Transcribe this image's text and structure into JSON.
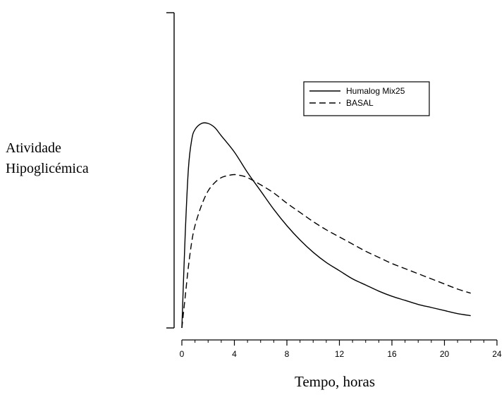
{
  "chart_data": {
    "type": "line",
    "title": "",
    "xlabel": "Tempo, horas",
    "ylabel_lines": [
      "Atividade",
      "Hipoglicémica"
    ],
    "xlim": [
      0,
      24
    ],
    "x_ticks": [
      0,
      4,
      8,
      12,
      16,
      20,
      24
    ],
    "y_ticks_shown": false,
    "grid": false,
    "legend_position": "top-right",
    "series": [
      {
        "name": "Humalog Mix25",
        "style": "solid",
        "color": "#000000",
        "x": [
          0,
          0.25,
          0.5,
          0.75,
          1,
          1.5,
          2,
          2.5,
          3,
          4,
          5,
          6,
          7,
          8,
          9,
          10,
          11,
          12,
          13,
          14,
          15,
          16,
          17,
          18,
          19,
          20,
          21,
          22
        ],
        "y": [
          0,
          0.45,
          0.78,
          0.92,
          0.97,
          1.0,
          1.0,
          0.98,
          0.94,
          0.86,
          0.76,
          0.67,
          0.58,
          0.5,
          0.43,
          0.37,
          0.32,
          0.28,
          0.24,
          0.21,
          0.18,
          0.155,
          0.135,
          0.115,
          0.1,
          0.085,
          0.07,
          0.06
        ]
      },
      {
        "name": "BASAL",
        "style": "dashed",
        "color": "#000000",
        "x": [
          0,
          0.25,
          0.5,
          0.75,
          1,
          1.5,
          2,
          2.5,
          3,
          3.5,
          4,
          4.5,
          5,
          6,
          7,
          8,
          9,
          10,
          11,
          12,
          13,
          14,
          15,
          16,
          17,
          18,
          19,
          20,
          21,
          22
        ],
        "y": [
          0,
          0.15,
          0.3,
          0.42,
          0.5,
          0.6,
          0.67,
          0.71,
          0.735,
          0.745,
          0.75,
          0.745,
          0.735,
          0.7,
          0.66,
          0.61,
          0.565,
          0.52,
          0.48,
          0.445,
          0.41,
          0.375,
          0.345,
          0.315,
          0.29,
          0.265,
          0.24,
          0.215,
          0.19,
          0.17
        ]
      }
    ]
  }
}
